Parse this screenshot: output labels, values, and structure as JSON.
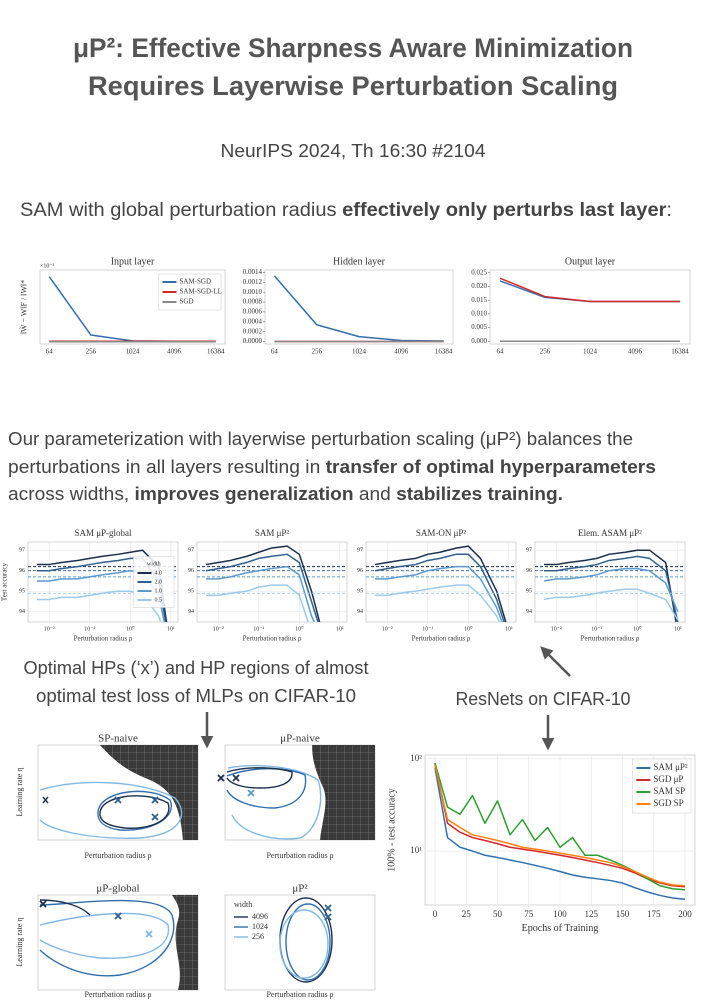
{
  "header": {
    "title": [
      "μP²: Effective Sharpness Aware Minimization",
      "Requires Layerwise Perturbation Scaling"
    ],
    "venue": "NeurIPS 2024, Th 16:30 #2104"
  },
  "intro": [
    "SAM with global perturbation radius ",
    "effectively only perturbs last layer",
    ":"
  ],
  "paragraph": [
    [
      "Our parameterization with layerwise perturbation scaling (μP²) balances the"
    ],
    [
      "perturbations in all layers resulting in ",
      "transfer of optimal hyperparameters"
    ],
    [
      "across widths, ",
      "improves generalization",
      " and ",
      "stabilizes training."
    ]
  ],
  "mlp": {
    "caption": [
      "Optimal HPs (‘x’) and HP regions of almost",
      "optimal test loss of MLPs on CIFAR-10"
    ],
    "panels": [
      {
        "title": "SP-naive"
      },
      {
        "title": "μP-naive"
      },
      {
        "title": "μP-global"
      },
      {
        "title": "μP²"
      }
    ],
    "ylabel": "Learning rate η",
    "xlabel": "Perturbation radius ρ",
    "legend_title": "width",
    "legend": [
      "4096",
      "1024",
      "256"
    ]
  },
  "resnet_caption": "ResNets on CIFAR-10",
  "chart_data": [
    {
      "type": "line",
      "title": "Input layer",
      "ylabel": "‖W̃ − W‖F / ‖W‖*",
      "y_offset": "×10⁻³",
      "categories": [
        "64",
        "256",
        "1024",
        "4096",
        "16384"
      ],
      "ylim": [
        -0.05,
        1.6
      ],
      "yticks": [],
      "legend": "upper right",
      "series": [
        {
          "name": "SAM-SGD",
          "color": "#2f6fb0",
          "values": [
            1.45,
            0.15,
            0.02,
            0.01,
            0.01
          ]
        },
        {
          "name": "SAM-SGD-LL",
          "color": "#d62728",
          "values": [
            0.01,
            0.01,
            0.01,
            0.01,
            0.01
          ]
        },
        {
          "name": "SGD",
          "color": "#888888",
          "values": [
            0,
            0,
            0,
            0,
            0
          ]
        }
      ]
    },
    {
      "type": "line",
      "title": "Hidden layer",
      "categories": [
        "64",
        "256",
        "1024",
        "4096",
        "16384"
      ],
      "ylim": [
        -5e-05,
        0.00145
      ],
      "yticks": [
        {
          "value": 0,
          "label": "0.0000"
        },
        {
          "value": 0.0002,
          "label": "0.0002"
        },
        {
          "value": 0.0004,
          "label": "0.0004"
        },
        {
          "value": 0.0006,
          "label": "0.0006"
        },
        {
          "value": 0.0008,
          "label": "0.0008"
        },
        {
          "value": 0.001,
          "label": "0.0010"
        },
        {
          "value": 0.0012,
          "label": "0.0012"
        },
        {
          "value": 0.0014,
          "label": "0.0014"
        }
      ],
      "series": [
        {
          "name": "SAM-SGD",
          "color": "#2f6fb0",
          "values": [
            0.00133,
            0.00034,
            0.0001,
            2e-05,
            1e-05
          ]
        },
        {
          "name": "SAM-SGD-LL",
          "color": "#d62728",
          "values": [
            0,
            0,
            0,
            0,
            0
          ]
        },
        {
          "name": "SGD",
          "color": "#888888",
          "values": [
            0,
            0,
            0,
            0,
            0
          ]
        }
      ]
    },
    {
      "type": "line",
      "title": "Output layer",
      "categories": [
        "64",
        "256",
        "1024",
        "4096",
        "16384"
      ],
      "ylim": [
        -0.001,
        0.026
      ],
      "yticks": [
        {
          "value": 0,
          "label": "0.000"
        },
        {
          "value": 0.005,
          "label": "0.005"
        },
        {
          "value": 0.01,
          "label": "0.010"
        },
        {
          "value": 0.015,
          "label": "0.015"
        },
        {
          "value": 0.02,
          "label": "0.020"
        },
        {
          "value": 0.025,
          "label": "0.025"
        }
      ],
      "series": [
        {
          "name": "SAM-SGD",
          "color": "#2f6fb0",
          "values": [
            0.022,
            0.016,
            0.0145,
            0.0145,
            0.0145
          ]
        },
        {
          "name": "SAM-SGD-LL",
          "color": "#d62728",
          "values": [
            0.023,
            0.0163,
            0.0145,
            0.0145,
            0.0145
          ]
        },
        {
          "name": "SGD",
          "color": "#888888",
          "values": [
            0,
            0,
            0,
            0,
            0
          ]
        }
      ]
    },
    {
      "type": "line",
      "title": "SAM μP-global",
      "ylabel": "Test accuracy",
      "xlabel": "Perturbation radius ρ",
      "xlog": true,
      "grid": true,
      "legend": "center right",
      "legend_title": "width",
      "x": [
        0.005,
        0.01,
        0.02,
        0.05,
        0.1,
        0.2,
        0.5,
        1,
        2,
        5,
        10
      ],
      "xlim": [
        0.003,
        15
      ],
      "xticks": [
        {
          "value": 0.01,
          "label": "10⁻²"
        },
        {
          "value": 0.1,
          "label": "10⁻¹"
        },
        {
          "value": 1,
          "label": "10⁰"
        },
        {
          "value": 10,
          "label": "10¹"
        }
      ],
      "ylim": [
        93.5,
        97.4
      ],
      "yticks": [
        94,
        95,
        96,
        97
      ],
      "series": [
        {
          "name": "4.0",
          "color": "#1a2f4d",
          "baseline": 96.2,
          "values": [
            96.3,
            96.3,
            96.4,
            96.5,
            96.6,
            96.7,
            96.8,
            96.9,
            97.0,
            96.2,
            92.0
          ]
        },
        {
          "name": "2.0",
          "color": "#2f5f8f",
          "baseline": 96.0,
          "values": [
            96.0,
            96.0,
            96.1,
            96.2,
            96.3,
            96.4,
            96.5,
            96.6,
            96.6,
            95.5,
            92.0
          ]
        },
        {
          "name": "1.0",
          "color": "#5a9ad0",
          "baseline": 95.7,
          "values": [
            95.5,
            95.5,
            95.6,
            95.6,
            95.7,
            95.8,
            95.9,
            96.0,
            95.9,
            94.8,
            92.0
          ]
        },
        {
          "name": "0.5",
          "color": "#9ccaec",
          "baseline": 94.9,
          "values": [
            94.6,
            94.6,
            94.7,
            94.7,
            94.8,
            94.9,
            95.0,
            95.0,
            94.8,
            93.8,
            92.0
          ]
        }
      ]
    },
    {
      "type": "line",
      "title": "SAM μP²",
      "xlabel": "Perturbation radius ρ",
      "xlog": true,
      "grid": true,
      "x": [
        0.005,
        0.01,
        0.02,
        0.05,
        0.1,
        0.2,
        0.5,
        1,
        2,
        5,
        10
      ],
      "xlim": [
        0.003,
        15
      ],
      "xticks": [
        {
          "value": 0.01,
          "label": "10⁻²"
        },
        {
          "value": 0.1,
          "label": "10⁻¹"
        },
        {
          "value": 1,
          "label": "10⁰"
        },
        {
          "value": 10,
          "label": "10¹"
        }
      ],
      "ylim": [
        93.5,
        97.4
      ],
      "yticks": [
        94,
        95,
        96,
        97
      ],
      "series": [
        {
          "name": "4.0",
          "color": "#1a2f4d",
          "baseline": 96.2,
          "values": [
            96.3,
            96.4,
            96.5,
            96.7,
            96.9,
            97.1,
            97.2,
            96.8,
            95.0,
            92.0,
            null
          ]
        },
        {
          "name": "2.0",
          "color": "#2f5f8f",
          "baseline": 96.0,
          "values": [
            96.0,
            96.1,
            96.2,
            96.4,
            96.6,
            96.7,
            96.8,
            96.4,
            94.5,
            92.0,
            null
          ]
        },
        {
          "name": "1.0",
          "color": "#5a9ad0",
          "baseline": 95.7,
          "values": [
            95.6,
            95.6,
            95.7,
            95.9,
            96.0,
            96.1,
            96.2,
            95.8,
            93.8,
            92.0,
            null
          ]
        },
        {
          "name": "0.5",
          "color": "#9ccaec",
          "baseline": 94.9,
          "values": [
            94.8,
            94.8,
            94.9,
            95.0,
            95.2,
            95.3,
            95.3,
            94.8,
            93.0,
            92.0,
            null
          ]
        }
      ]
    },
    {
      "type": "line",
      "title": "SAM-ON μP²",
      "xlabel": "Perturbation radius ρ",
      "xlog": true,
      "grid": true,
      "x": [
        0.005,
        0.01,
        0.02,
        0.05,
        0.1,
        0.2,
        0.5,
        1,
        2,
        5,
        10
      ],
      "xlim": [
        0.003,
        15
      ],
      "xticks": [
        {
          "value": 0.01,
          "label": "10⁻²"
        },
        {
          "value": 0.1,
          "label": "10⁻¹"
        },
        {
          "value": 1,
          "label": "10⁰"
        },
        {
          "value": 10,
          "label": "10¹"
        }
      ],
      "ylim": [
        93.5,
        97.4
      ],
      "yticks": [
        94,
        95,
        96,
        97
      ],
      "series": [
        {
          "name": "4.0",
          "color": "#1a2f4d",
          "baseline": 96.2,
          "values": [
            96.3,
            96.4,
            96.5,
            96.6,
            96.8,
            96.9,
            97.1,
            97.2,
            96.6,
            95.0,
            93.0
          ]
        },
        {
          "name": "2.0",
          "color": "#2f5f8f",
          "baseline": 96.0,
          "values": [
            96.0,
            96.1,
            96.2,
            96.3,
            96.5,
            96.6,
            96.8,
            96.8,
            96.2,
            94.6,
            92.8
          ]
        },
        {
          "name": "1.0",
          "color": "#5a9ad0",
          "baseline": 95.7,
          "values": [
            95.6,
            95.6,
            95.7,
            95.8,
            96.0,
            96.1,
            96.2,
            96.2,
            95.6,
            94.2,
            92.6
          ]
        },
        {
          "name": "0.5",
          "color": "#9ccaec",
          "baseline": 94.9,
          "values": [
            94.8,
            94.8,
            94.9,
            95.0,
            95.1,
            95.2,
            95.3,
            95.3,
            94.8,
            93.8,
            92.4
          ]
        }
      ]
    },
    {
      "type": "line",
      "title": "Elem. ASAM μP²",
      "xlabel": "Perturbation radius ρ",
      "xlog": true,
      "grid": true,
      "x": [
        0.005,
        0.01,
        0.02,
        0.05,
        0.1,
        0.2,
        0.5,
        1,
        2,
        5,
        10
      ],
      "xlim": [
        0.003,
        15
      ],
      "xticks": [
        {
          "value": 0.01,
          "label": "10⁻²"
        },
        {
          "value": 0.1,
          "label": "10⁻¹"
        },
        {
          "value": 1,
          "label": "10⁰"
        },
        {
          "value": 10,
          "label": "10¹"
        }
      ],
      "ylim": [
        93.5,
        97.4
      ],
      "yticks": [
        94,
        95,
        96,
        97
      ],
      "series": [
        {
          "name": "4.0",
          "color": "#1a2f4d",
          "baseline": 96.2,
          "values": [
            96.3,
            96.3,
            96.4,
            96.5,
            96.6,
            96.8,
            96.9,
            97.0,
            97.0,
            96.4,
            93.0
          ]
        },
        {
          "name": "2.0",
          "color": "#2f5f8f",
          "baseline": 96.0,
          "values": [
            96.0,
            96.0,
            96.1,
            96.2,
            96.3,
            96.5,
            96.6,
            96.7,
            96.6,
            96.0,
            93.5
          ]
        },
        {
          "name": "1.0",
          "color": "#5a9ad0",
          "baseline": 95.7,
          "values": [
            95.5,
            95.6,
            95.6,
            95.7,
            95.8,
            96.0,
            96.1,
            96.1,
            96.0,
            95.4,
            94.0
          ]
        },
        {
          "name": "0.5",
          "color": "#9ccaec",
          "baseline": 94.9,
          "values": [
            94.6,
            94.7,
            94.7,
            94.8,
            94.9,
            95.0,
            95.1,
            95.1,
            94.9,
            94.6,
            93.6
          ]
        }
      ]
    },
    {
      "type": "line",
      "xlabel": "Epochs of Training",
      "ylabel": "100% - test accuracy",
      "ylog": true,
      "grid": true,
      "legend": "upper right",
      "x": [
        0,
        10,
        20,
        30,
        40,
        50,
        60,
        70,
        80,
        90,
        100,
        110,
        120,
        130,
        140,
        150,
        160,
        170,
        180,
        190,
        200
      ],
      "xlim": [
        -8,
        208
      ],
      "xticks": [
        0,
        25,
        50,
        75,
        100,
        125,
        150,
        175,
        200
      ],
      "ylim": [
        2.6,
        110
      ],
      "yticks": [
        {
          "value": 10,
          "label": "10¹"
        },
        {
          "value": 100,
          "label": "10²"
        }
      ],
      "series": [
        {
          "name": "SAM μP²",
          "color": "#2f6fb0",
          "values": [
            80,
            14,
            11,
            10,
            9,
            8.5,
            8,
            7.5,
            7,
            6.5,
            6,
            5.5,
            5.2,
            5,
            4.8,
            4.5,
            4,
            3.6,
            3.3,
            3.1,
            3
          ]
        },
        {
          "name": "SGD μP",
          "color": "#d62728",
          "values": [
            90,
            20,
            16,
            14,
            13,
            12,
            11,
            10.5,
            10,
            9.5,
            9,
            8.5,
            8,
            7.5,
            7,
            6.5,
            5.8,
            5,
            4.5,
            4.2,
            4.1
          ]
        },
        {
          "name": "SAM SP",
          "color": "#2ca02c",
          "values": [
            90,
            30,
            25,
            40,
            20,
            35,
            15,
            22,
            13,
            18,
            11,
            14,
            9,
            9,
            8,
            7,
            6,
            5,
            4.2,
            3.9,
            3.8
          ]
        },
        {
          "name": "SGD SP",
          "color": "#ff7f0e",
          "values": [
            85,
            22,
            18,
            15,
            14,
            13,
            12,
            11,
            10.5,
            10,
            9.5,
            9,
            8.5,
            8,
            7.5,
            6.8,
            6,
            5.2,
            4.6,
            4.3,
            4.2
          ]
        }
      ]
    }
  ]
}
